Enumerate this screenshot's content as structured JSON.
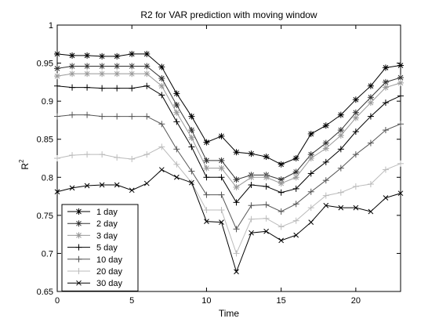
{
  "chart_data": {
    "type": "line",
    "title": "R2 for VAR prediction with moving window",
    "xlabel": "Time",
    "ylabel": "R",
    "ylabel_superscript": "2",
    "xlim": [
      0,
      23
    ],
    "ylim": [
      0.65,
      1.0
    ],
    "x_ticks": [
      0,
      5,
      10,
      15,
      20
    ],
    "y_ticks": [
      0.65,
      0.7,
      0.75,
      0.8,
      0.85,
      0.9,
      0.95,
      1.0
    ],
    "x_tick_labels": [
      "0",
      "5",
      "10",
      "15",
      "20"
    ],
    "y_tick_labels": [
      "0.65",
      "0.7",
      "0.75",
      "0.8",
      "0.85",
      "0.9",
      "0.95",
      "1"
    ],
    "grid": false,
    "legend_position": "bottom-left",
    "x": [
      0,
      1,
      2,
      3,
      4,
      5,
      6,
      7,
      8,
      9,
      10,
      11,
      12,
      13,
      14,
      15,
      16,
      17,
      18,
      19,
      20,
      21,
      22,
      23
    ],
    "series": [
      {
        "name": "1 day",
        "color": "#000000",
        "marker": "asterisk",
        "values": [
          0.962,
          0.96,
          0.96,
          0.959,
          0.959,
          0.962,
          0.962,
          0.945,
          0.91,
          0.88,
          0.846,
          0.854,
          0.833,
          0.831,
          0.827,
          0.817,
          0.825,
          0.857,
          0.868,
          0.882,
          0.902,
          0.92,
          0.944,
          0.947
        ]
      },
      {
        "name": "2 day",
        "color": "#333333",
        "marker": "asterisk",
        "values": [
          0.943,
          0.946,
          0.946,
          0.946,
          0.946,
          0.946,
          0.946,
          0.93,
          0.895,
          0.862,
          0.822,
          0.822,
          0.797,
          0.803,
          0.803,
          0.797,
          0.807,
          0.83,
          0.845,
          0.862,
          0.885,
          0.905,
          0.925,
          0.931
        ]
      },
      {
        "name": "3 day",
        "color": "#999999",
        "marker": "asterisk",
        "values": [
          0.933,
          0.936,
          0.936,
          0.936,
          0.936,
          0.936,
          0.936,
          0.92,
          0.885,
          0.852,
          0.812,
          0.812,
          0.787,
          0.8,
          0.8,
          0.792,
          0.8,
          0.825,
          0.838,
          0.855,
          0.878,
          0.898,
          0.918,
          0.924
        ]
      },
      {
        "name": "5 day",
        "color": "#000000",
        "marker": "plus",
        "values": [
          0.92,
          0.918,
          0.918,
          0.917,
          0.917,
          0.917,
          0.92,
          0.908,
          0.873,
          0.84,
          0.8,
          0.8,
          0.767,
          0.79,
          0.788,
          0.78,
          0.785,
          0.805,
          0.82,
          0.837,
          0.86,
          0.88,
          0.898,
          0.907
        ]
      },
      {
        "name": "10 day",
        "color": "#555555",
        "marker": "plus",
        "values": [
          0.88,
          0.882,
          0.882,
          0.88,
          0.88,
          0.88,
          0.88,
          0.87,
          0.837,
          0.808,
          0.777,
          0.777,
          0.732,
          0.763,
          0.764,
          0.755,
          0.765,
          0.781,
          0.796,
          0.812,
          0.83,
          0.845,
          0.862,
          0.87
        ]
      },
      {
        "name": "20 day",
        "color": "#bbbbbb",
        "marker": "plus",
        "values": [
          0.825,
          0.829,
          0.83,
          0.83,
          0.826,
          0.824,
          0.83,
          0.84,
          0.817,
          0.793,
          0.757,
          0.757,
          0.7,
          0.745,
          0.746,
          0.735,
          0.743,
          0.76,
          0.776,
          0.78,
          0.788,
          0.791,
          0.81,
          0.818
        ]
      },
      {
        "name": "30 day",
        "color": "#000000",
        "marker": "x",
        "values": [
          0.781,
          0.786,
          0.789,
          0.79,
          0.79,
          0.783,
          0.792,
          0.81,
          0.8,
          0.793,
          0.742,
          0.741,
          0.676,
          0.727,
          0.729,
          0.717,
          0.724,
          0.741,
          0.763,
          0.76,
          0.76,
          0.755,
          0.773,
          0.779
        ]
      }
    ]
  }
}
